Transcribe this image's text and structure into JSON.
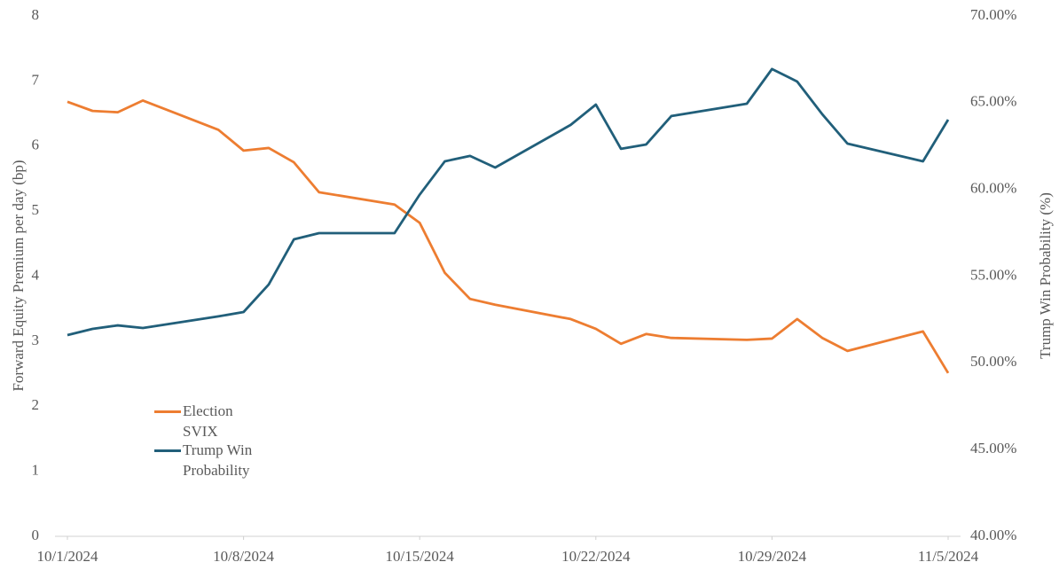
{
  "chart_data": {
    "type": "line",
    "y_label": "Forward Equity Premium per day (bp)",
    "y2_label": "Trump Win Probability (%)",
    "x": [
      "10/1/2024",
      "10/2/2024",
      "10/3/2024",
      "10/4/2024",
      "10/7/2024",
      "10/8/2024",
      "10/9/2024",
      "10/10/2024",
      "10/11/2024",
      "10/14/2024",
      "10/15/2024",
      "10/16/2024",
      "10/17/2024",
      "10/18/2024",
      "10/21/2024",
      "10/22/2024",
      "10/23/2024",
      "10/24/2024",
      "10/25/2024",
      "10/28/2024",
      "10/29/2024",
      "10/30/2024",
      "10/31/2024",
      "11/1/2024",
      "11/4/2024",
      "11/5/2024"
    ],
    "series": [
      {
        "name": "Election SVIX",
        "color": "#ed7d31",
        "axis": "y",
        "values": [
          6.68,
          6.54,
          6.52,
          6.7,
          6.25,
          5.93,
          5.97,
          5.75,
          5.29,
          5.1,
          4.82,
          4.05,
          3.65,
          3.56,
          3.34,
          3.19,
          2.96,
          3.11,
          3.05,
          3.02,
          3.04,
          3.34,
          3.05,
          2.85,
          3.15,
          2.51
        ]
      },
      {
        "name": "Trump Win Probability",
        "color": "#215f7a",
        "axis": "y2",
        "values": [
          51.6,
          51.96,
          52.16,
          52.01,
          52.68,
          52.93,
          54.52,
          57.12,
          57.48,
          57.48,
          59.7,
          61.62,
          61.93,
          61.26,
          63.72,
          64.89,
          62.34,
          62.59,
          64.23,
          64.94,
          66.94,
          66.22,
          64.33,
          62.64,
          61.62,
          64.02
        ]
      }
    ],
    "xlim": [
      "10/1/2024",
      "11/5/2024"
    ],
    "xticks": [
      "10/1/2024",
      "10/8/2024",
      "10/15/2024",
      "10/22/2024",
      "10/29/2024",
      "11/5/2024"
    ],
    "ylim": [
      0,
      8
    ],
    "yticks": [
      0,
      1,
      2,
      3,
      4,
      5,
      6,
      7,
      8
    ],
    "y2lim": [
      40,
      70
    ],
    "y2ticks": [
      {
        "value": 40,
        "label": "40.00%"
      },
      {
        "value": 45,
        "label": "45.00%"
      },
      {
        "value": 50,
        "label": "50.00%"
      },
      {
        "value": 55,
        "label": "55.00%"
      },
      {
        "value": 60,
        "label": "60.00%"
      },
      {
        "value": 65,
        "label": "65.00%"
      },
      {
        "value": 70,
        "label": "70.00%"
      }
    ],
    "grid": false
  }
}
